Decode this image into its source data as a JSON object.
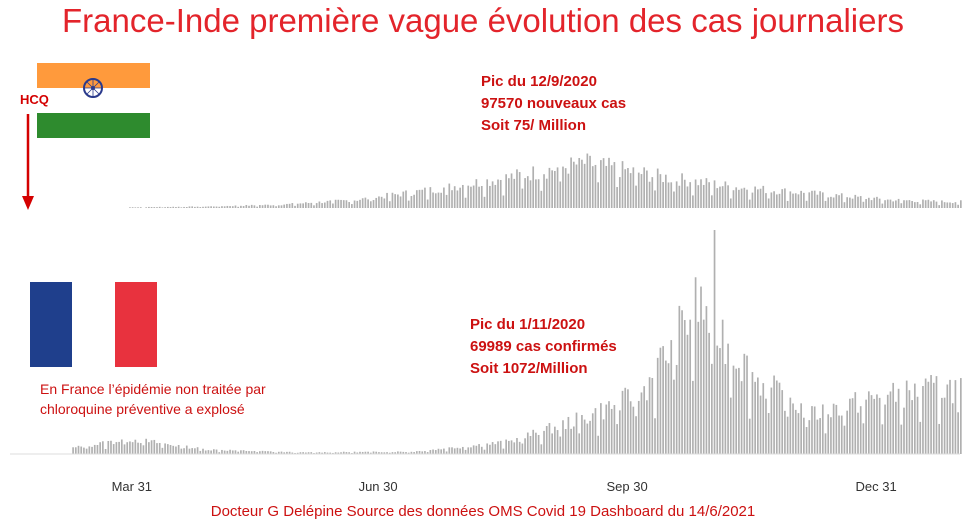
{
  "title": "France-Inde première vague évolution des cas journaliers",
  "hcq_label": "HCQ",
  "india_annotation": [
    "Pic du 12/9/2020",
    "97570 nouveaux cas",
    "Soit 75/ Million"
  ],
  "france_annotation": [
    "Pic du 1/11/2020",
    "69989 cas confirmés",
    "Soit 1072/Million"
  ],
  "france_note": [
    "En France l’épidémie non traitée par",
    "chloroquine préventive a explosé"
  ],
  "footer": "Docteur G Delépine Source des données OMS Covid 19 Dashboard du 14/6/2021",
  "colors": {
    "title": "#e3242b",
    "annotation": "#cc1111",
    "bars": "#b0b0b0",
    "arrow": "#d40000"
  },
  "icons": {
    "india_flag": "india-flag-icon",
    "france_flag": "france-flag-icon",
    "arrow": "down-arrow-icon"
  },
  "chart_data": [
    {
      "type": "bar",
      "series_label": "Inde",
      "x_range": [
        "2020-02-15",
        "2021-01-31"
      ],
      "x_ticks": [
        "Mar 31",
        "Jun 30",
        "Sep 30",
        "Dec 31"
      ],
      "peak": {
        "date": "2020-09-12",
        "value": 97570
      },
      "weekly_values": [
        {
          "week_start": "2020-03-30",
          "value": 1500
        },
        {
          "week_start": "2020-04-27",
          "value": 3000
        },
        {
          "week_start": "2020-05-25",
          "value": 7000
        },
        {
          "week_start": "2020-06-22",
          "value": 17000
        },
        {
          "week_start": "2020-07-20",
          "value": 38000
        },
        {
          "week_start": "2020-08-17",
          "value": 63000
        },
        {
          "week_start": "2020-09-14",
          "value": 93000
        },
        {
          "week_start": "2020-10-12",
          "value": 65000
        },
        {
          "week_start": "2020-11-09",
          "value": 43000
        },
        {
          "week_start": "2020-12-07",
          "value": 30000
        },
        {
          "week_start": "2021-01-04",
          "value": 17000
        },
        {
          "week_start": "2021-01-25",
          "value": 13000
        }
      ]
    },
    {
      "type": "bar",
      "series_label": "France",
      "x_range": [
        "2020-02-15",
        "2021-01-31"
      ],
      "x_ticks": [
        "Mar 31",
        "Jun 30",
        "Sep 30",
        "Dec 31"
      ],
      "peak": {
        "date": "2020-11-01",
        "value": 69989
      },
      "weekly_values": [
        {
          "week_start": "2020-03-09",
          "value": 2000
        },
        {
          "week_start": "2020-03-30",
          "value": 5000
        },
        {
          "week_start": "2020-04-27",
          "value": 1500
        },
        {
          "week_start": "2020-06-01",
          "value": 500
        },
        {
          "week_start": "2020-07-13",
          "value": 800
        },
        {
          "week_start": "2020-08-17",
          "value": 4000
        },
        {
          "week_start": "2020-09-14",
          "value": 12000
        },
        {
          "week_start": "2020-10-05",
          "value": 20000
        },
        {
          "week_start": "2020-10-26",
          "value": 50000
        },
        {
          "week_start": "2020-11-16",
          "value": 25000
        },
        {
          "week_start": "2020-12-07",
          "value": 13000
        },
        {
          "week_start": "2020-12-28",
          "value": 18000
        },
        {
          "week_start": "2021-01-25",
          "value": 22000
        }
      ]
    }
  ]
}
